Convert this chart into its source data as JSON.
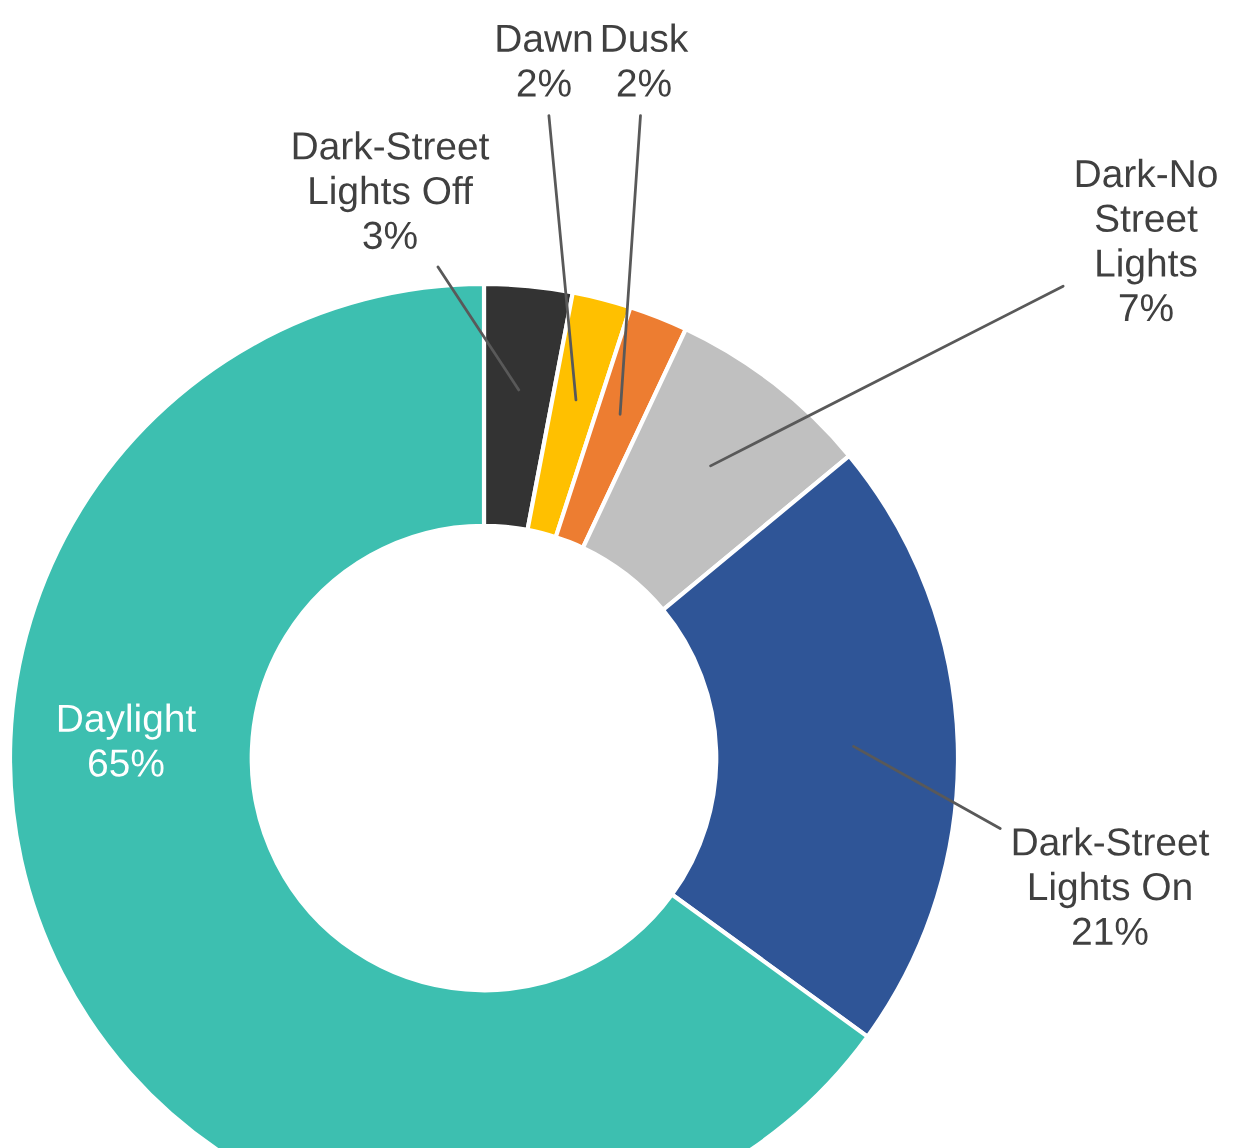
{
  "chart_data": {
    "type": "donut",
    "categories": [
      "Dark-Street\nLights Off",
      "Dawn",
      "Dusk",
      "Dark-No\nStreet\nLights",
      "Dark-Street\nLights On",
      "Daylight"
    ],
    "values": [
      3,
      2,
      2,
      7,
      21,
      65
    ],
    "value_labels": [
      "3%",
      "2%",
      "2%",
      "7%",
      "21%",
      "65%"
    ],
    "colors": [
      "#333333",
      "#ffc000",
      "#ed7d31",
      "#c0c0c0",
      "#2f5597",
      "#3dbfb0"
    ],
    "legend": false
  }
}
